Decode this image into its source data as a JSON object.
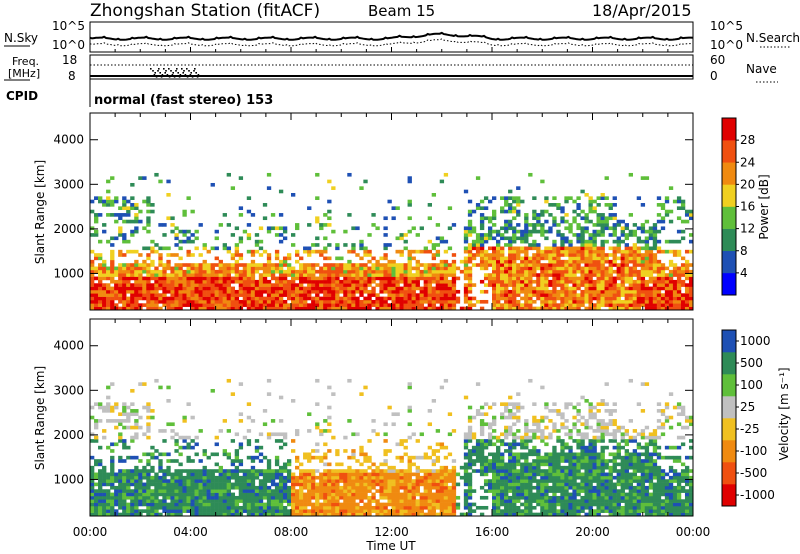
{
  "header": {
    "station": "Zhongshan Station (fitACF)",
    "beam": "Beam 15",
    "date": "18/Apr/2015"
  },
  "noise_panel": {
    "left_label": "N.Sky",
    "left_ticks": [
      "10^5",
      "10^0"
    ],
    "right_label": "N.Search",
    "right_ticks": [
      "10^5",
      "10^0"
    ]
  },
  "freq_panel": {
    "left_label_1": "Freq.",
    "left_label_2": "[MHz]",
    "left_ticks": [
      "18",
      "8"
    ],
    "right_label": "Nave",
    "right_ticks": [
      "60",
      "0"
    ]
  },
  "cpid": {
    "label": "CPID",
    "mode": "normal (fast stereo) 153"
  },
  "colors": {
    "power": [
      "#0000ff",
      "#1e50b4",
      "#2e8b57",
      "#5fbf3a",
      "#f0d020",
      "#f08a10",
      "#f05010",
      "#e00000"
    ],
    "velocity": [
      "#e00000",
      "#f05010",
      "#f08a10",
      "#f0c020",
      "#c0c0c0",
      "#5fbf3a",
      "#2e8b57",
      "#1e50b4"
    ]
  },
  "chart_data": [
    {
      "type": "heatmap",
      "name": "power-panel",
      "ylabel": "Slant Range [km]",
      "yticks": [
        "4000",
        "3000",
        "2000",
        "1000"
      ],
      "ylim": [
        180,
        4600
      ],
      "colorbar_label": "Power [dB]",
      "colorbar_ticks": [
        "28",
        "24",
        "20",
        "16",
        "12",
        "8",
        "4"
      ],
      "colorbar_range": [
        0,
        32
      ]
    },
    {
      "type": "heatmap",
      "name": "velocity-panel",
      "ylabel": "Slant Range [km]",
      "yticks": [
        "4000",
        "3000",
        "2000",
        "1000"
      ],
      "ylim": [
        180,
        4600
      ],
      "colorbar_label": "Velocity [m s⁻¹]",
      "colorbar_ticks": [
        "1000",
        "500",
        "100",
        "25",
        "-25",
        "-100",
        "-500",
        "-1000"
      ]
    }
  ],
  "time_axis": {
    "label": "Time UT",
    "ticks": [
      "00:00",
      "04:00",
      "08:00",
      "12:00",
      "16:00",
      "20:00",
      "00:00"
    ]
  }
}
